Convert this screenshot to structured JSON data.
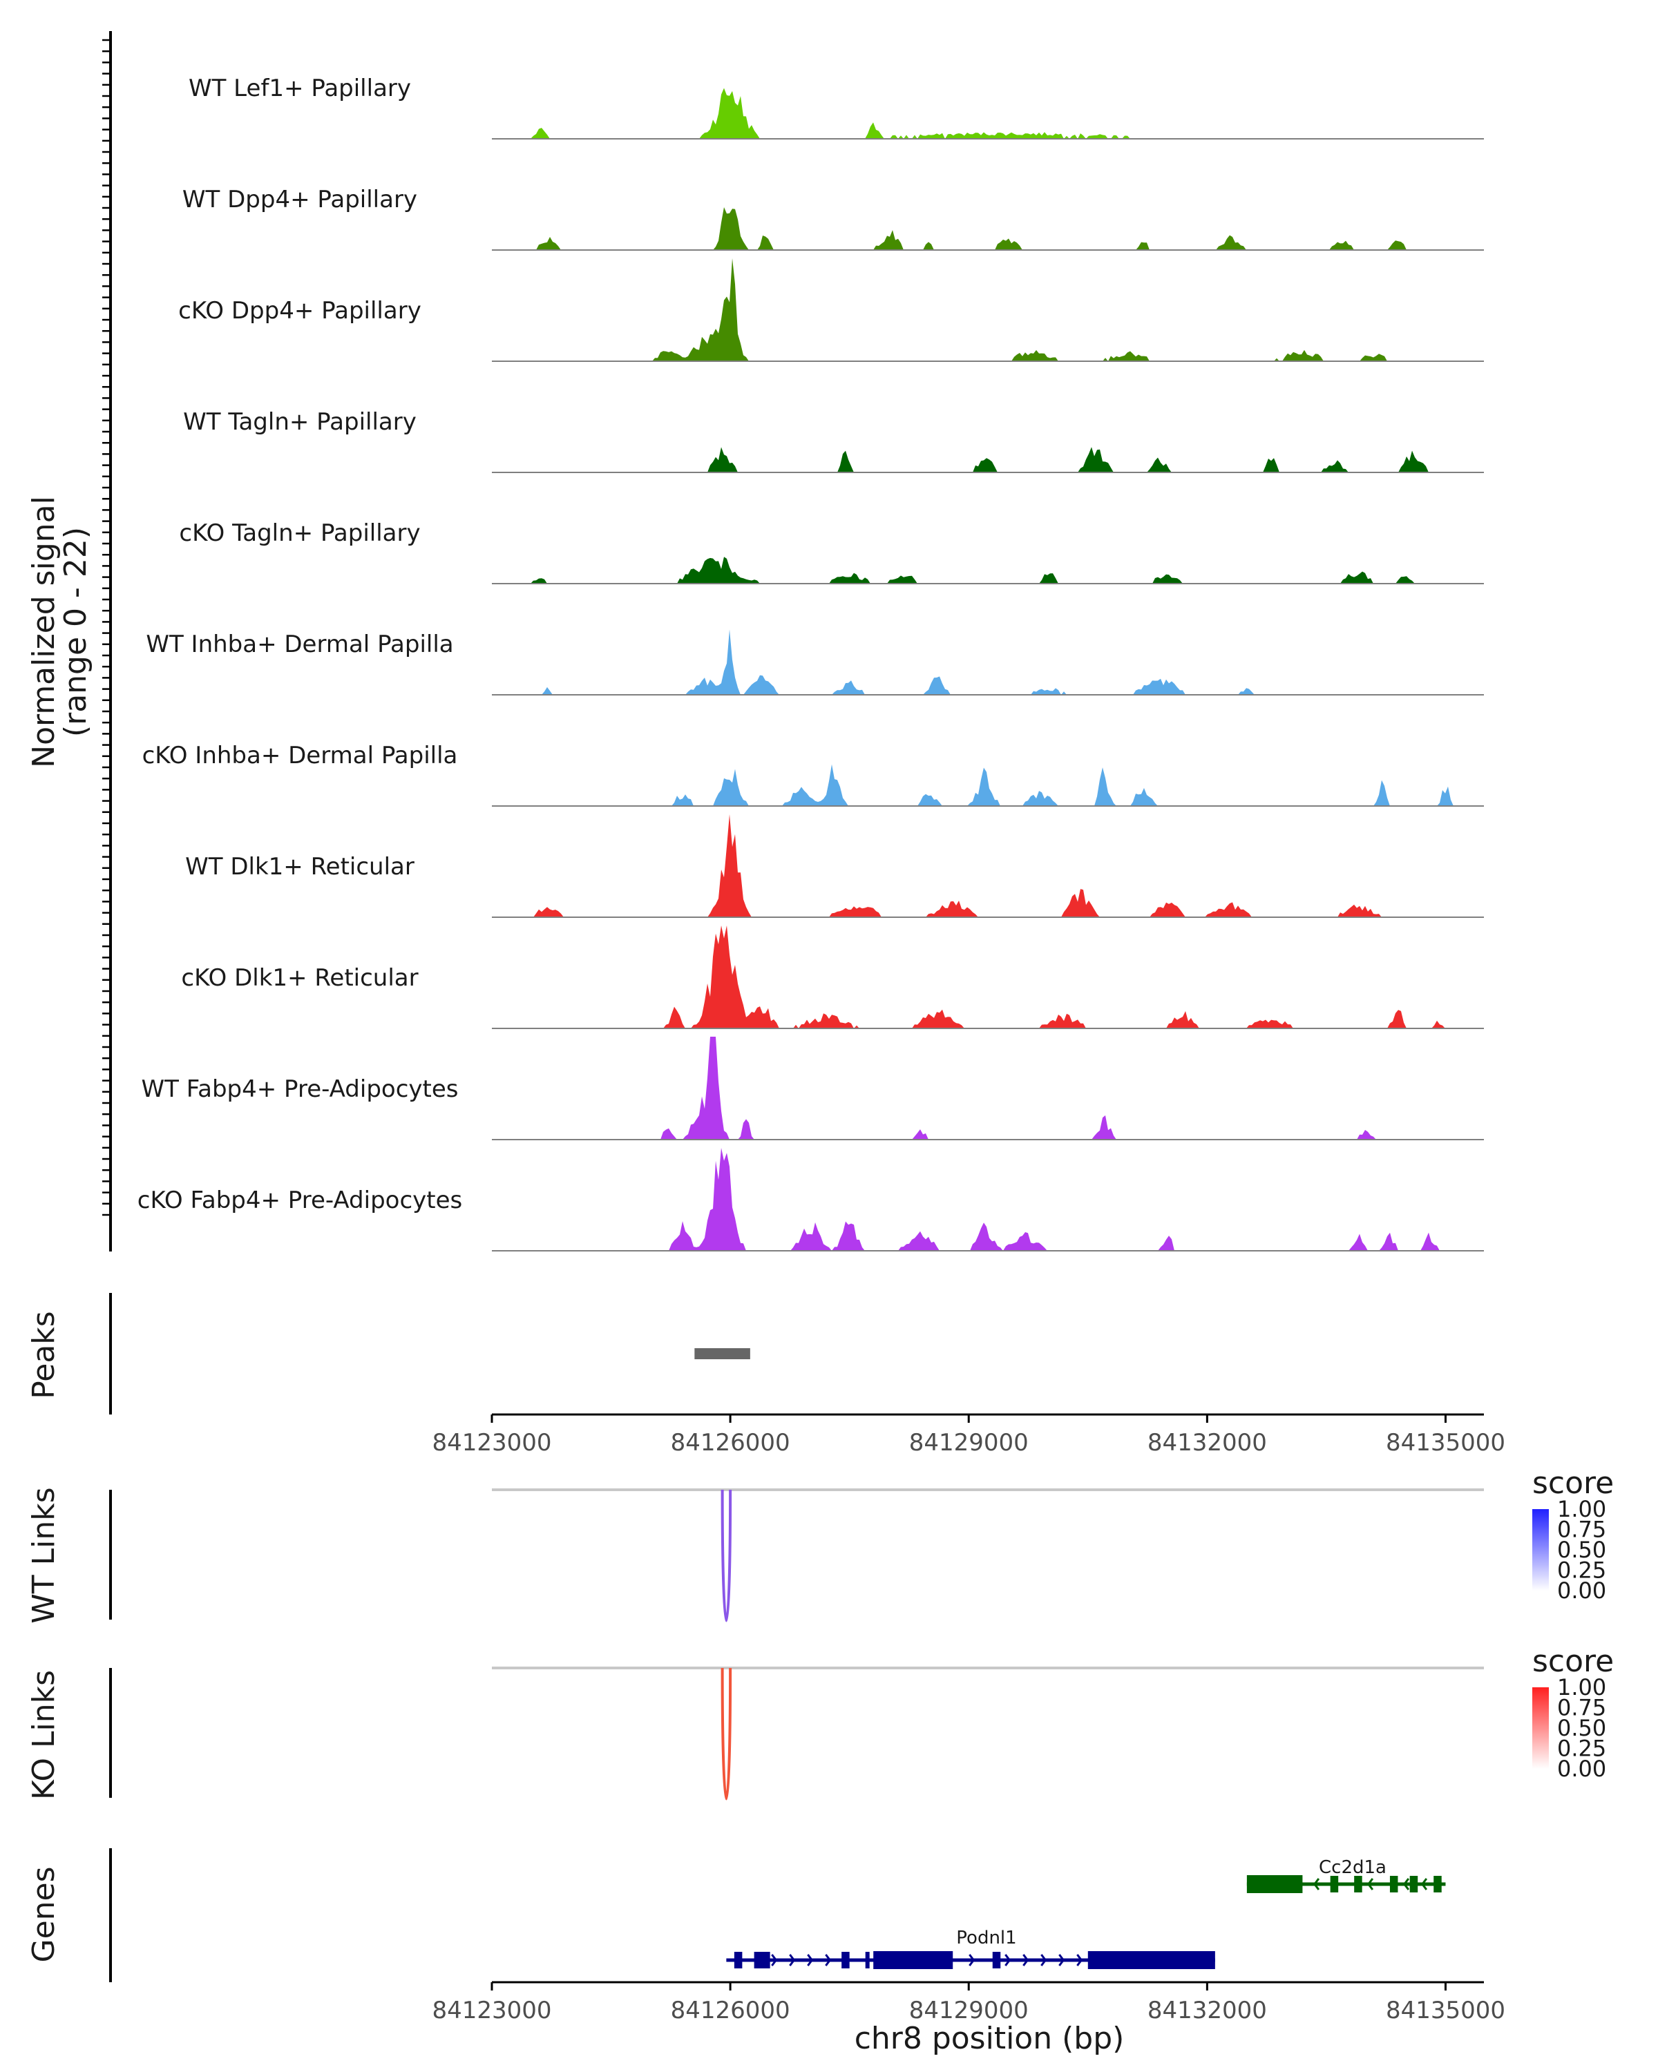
{
  "chart_data": {
    "type": "coverage",
    "xlabel": "chr8 position (bp)",
    "xlim": [
      84123000,
      84135500
    ],
    "x_ticks": [
      84123000,
      84126000,
      84129000,
      84132000,
      84135000
    ],
    "x_tick_labels": [
      "84123000",
      "84126000",
      "84129000",
      "84132000",
      "84135000"
    ],
    "coverage": {
      "ylabel_line1": "Normalized signal",
      "ylabel_line2": "(range 0 - 22)",
      "ylim": [
        0,
        22
      ],
      "tracks": [
        {
          "name": "WT Lef1+ Papillary",
          "color": "#66cd00",
          "peaks": [
            [
              84123600,
              250,
              1.2
            ],
            [
              84126000,
              550,
              6.5
            ],
            [
              84127800,
              200,
              1.5
            ],
            [
              84129500,
              4500,
              0.7
            ]
          ]
        },
        {
          "name": "WT Dpp4+ Papillary",
          "color": "#458b00",
          "peaks": [
            [
              84123700,
              300,
              1.5
            ],
            [
              84126000,
              300,
              6.8
            ],
            [
              84126450,
              200,
              2
            ],
            [
              84128000,
              350,
              2.2
            ],
            [
              84128500,
              150,
              1.2
            ],
            [
              84129500,
              400,
              1.5
            ],
            [
              84131200,
              150,
              1.2
            ],
            [
              84132300,
              350,
              1.5
            ],
            [
              84133700,
              300,
              1.5
            ],
            [
              84134400,
              250,
              1.3
            ]
          ]
        },
        {
          "name": "cKO Dpp4+ Papillary",
          "color": "#458b00",
          "peaks": [
            [
              84126000,
              250,
              11
            ],
            [
              84125800,
              700,
              3.5
            ],
            [
              84125200,
              400,
              1.2
            ],
            [
              84129800,
              700,
              1.2
            ],
            [
              84131000,
              700,
              1.0
            ],
            [
              84133200,
              700,
              1.2
            ],
            [
              84134100,
              500,
              0.8
            ]
          ]
        },
        {
          "name": "WT Tagln+ Papillary",
          "color": "#006400",
          "peaks": [
            [
              84125900,
              350,
              2.5
            ],
            [
              84127450,
              150,
              3
            ],
            [
              84129200,
              300,
              2
            ],
            [
              84130600,
              350,
              3.5
            ],
            [
              84131400,
              250,
              1.8
            ],
            [
              84132800,
              200,
              2
            ],
            [
              84133600,
              300,
              1.5
            ],
            [
              84134600,
              400,
              2.2
            ]
          ]
        },
        {
          "name": "cKO Tagln+ Papillary",
          "color": "#006400",
          "peaks": [
            [
              84125800,
              900,
              3
            ],
            [
              84123600,
              200,
              0.8
            ],
            [
              84127500,
              600,
              1.2
            ],
            [
              84128200,
              500,
              1
            ],
            [
              84130000,
              250,
              1.5
            ],
            [
              84131500,
              500,
              1
            ],
            [
              84133900,
              500,
              1.5
            ],
            [
              84134500,
              300,
              1.0
            ]
          ]
        },
        {
          "name": "WT Inhba+ Dermal Papilla",
          "color": "#5aaae8",
          "peaks": [
            [
              84123700,
              100,
              1.0
            ],
            [
              84125700,
              500,
              1.8
            ],
            [
              84126000,
              180,
              7.0
            ],
            [
              84126400,
              400,
              2.2
            ],
            [
              84127500,
              400,
              1.5
            ],
            [
              84128600,
              300,
              2.2
            ],
            [
              84130000,
              600,
              0.8
            ],
            [
              84131400,
              700,
              1.8
            ],
            [
              84132500,
              300,
              0.8
            ]
          ]
        },
        {
          "name": "cKO Inhba+ Dermal Papilla",
          "color": "#5aaae8",
          "peaks": [
            [
              84126000,
              350,
              4.5
            ],
            [
              84125400,
              300,
              1.5
            ],
            [
              84127300,
              250,
              5.5
            ],
            [
              84126900,
              400,
              2.5
            ],
            [
              84128500,
              300,
              1.5
            ],
            [
              84129200,
              300,
              4
            ],
            [
              84129900,
              400,
              1.8
            ],
            [
              84130700,
              200,
              4.5
            ],
            [
              84131200,
              300,
              2.5
            ],
            [
              84134200,
              150,
              3
            ],
            [
              84135000,
              150,
              2.5
            ]
          ]
        },
        {
          "name": "WT Dlk1+ Reticular",
          "color": "#ee2c2c",
          "peaks": [
            [
              84126000,
              350,
              12
            ],
            [
              84123700,
              400,
              1.3
            ],
            [
              84127600,
              700,
              1.5
            ],
            [
              84128800,
              600,
              1.8
            ],
            [
              84130400,
              400,
              3
            ],
            [
              84131500,
              400,
              2.2
            ],
            [
              84132300,
              600,
              1.5
            ],
            [
              84133900,
              600,
              1.3
            ]
          ]
        },
        {
          "name": "cKO Dlk1+ Reticular",
          "color": "#ee2c2c",
          "peaks": [
            [
              84125900,
              500,
              12.5
            ],
            [
              84126400,
              400,
              2.5
            ],
            [
              84125300,
              200,
              2.5
            ],
            [
              84127200,
              800,
              1.5
            ],
            [
              84128600,
              600,
              2.2
            ],
            [
              84130200,
              600,
              1.5
            ],
            [
              84131700,
              400,
              1.8
            ],
            [
              84132800,
              600,
              1.3
            ],
            [
              84134400,
              200,
              2.5
            ],
            [
              84134900,
              200,
              0.8
            ]
          ]
        },
        {
          "name": "WT Fabp4+ Pre-Adipocytes",
          "color": "#b23aee",
          "peaks": [
            [
              84125800,
              150,
              18
            ],
            [
              84125700,
              450,
              5
            ],
            [
              84125200,
              200,
              1.3
            ],
            [
              84126200,
              150,
              2.5
            ],
            [
              84128400,
              200,
              1.2
            ],
            [
              84130700,
              250,
              2.5
            ],
            [
              84134000,
              200,
              1.5
            ]
          ]
        },
        {
          "name": "cKO Fabp4+ Pre-Adipocytes",
          "color": "#b23aee",
          "peaks": [
            [
              84125900,
              400,
              14
            ],
            [
              84125400,
              300,
              3
            ],
            [
              84127000,
              400,
              3.5
            ],
            [
              84127500,
              300,
              4
            ],
            [
              84129200,
              300,
              3.5
            ],
            [
              84128400,
              500,
              2
            ],
            [
              84129700,
              500,
              2
            ],
            [
              84131500,
              200,
              2
            ],
            [
              84134300,
              200,
              2
            ],
            [
              84134800,
              200,
              2
            ],
            [
              84133900,
              200,
              2
            ]
          ]
        }
      ]
    },
    "peaks_track": {
      "label": "Peaks",
      "regions": [
        [
          84125550,
          84126250
        ]
      ],
      "color": "#666666"
    },
    "link_tracks": [
      {
        "label": "WT Links",
        "color": "#8a57e8",
        "arc_start": 84125900,
        "arc_end": 84126000,
        "legend": {
          "title": "score",
          "ticks": [
            "1.00",
            "0.75",
            "0.50",
            "0.25",
            "0.00"
          ],
          "color_low": "#ffffff",
          "color_high": "#2020ff"
        }
      },
      {
        "label": "KO Links",
        "color": "#f2553a",
        "arc_start": 84125900,
        "arc_end": 84126000,
        "legend": {
          "title": "score",
          "ticks": [
            "1.00",
            "0.75",
            "0.50",
            "0.25",
            "0.00"
          ],
          "color_low": "#ffffff",
          "color_high": "#ff2020"
        }
      }
    ],
    "genes": {
      "label": "Genes",
      "items": [
        {
          "name": "Cc2d1a",
          "strand": "-",
          "color": "#006400",
          "start": 84132500,
          "end": 84135000,
          "exons": [
            [
              84132500,
              84133200
            ],
            [
              84133550,
              84133650
            ],
            [
              84133850,
              84133950
            ],
            [
              84134300,
              84134400
            ],
            [
              84134550,
              84134650
            ],
            [
              84134850,
              84134950
            ]
          ]
        },
        {
          "name": "Podnl1",
          "strand": "+",
          "color": "#00008b",
          "start": 84125950,
          "end": 84132100,
          "exons": [
            [
              84126050,
              84126150
            ],
            [
              84126300,
              84126500
            ],
            [
              84127400,
              84127500
            ],
            [
              84127700,
              84127750
            ],
            [
              84127800,
              84128800
            ],
            [
              84129300,
              84129400
            ],
            [
              84130500,
              84132100
            ]
          ]
        }
      ]
    }
  }
}
